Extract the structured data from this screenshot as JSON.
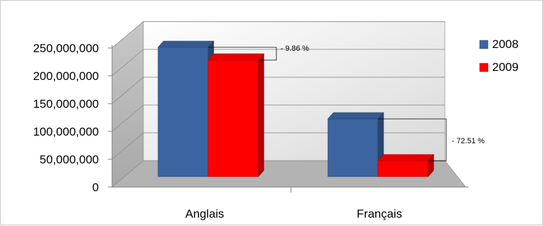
{
  "chart_data": {
    "type": "bar",
    "categories": [
      "Anglais",
      "Français"
    ],
    "series": [
      {
        "name": "2008",
        "values": [
          224000000,
          100000000
        ],
        "color": "#3b64a0"
      },
      {
        "name": "2009",
        "values": [
          202000000,
          27500000
        ],
        "color": "#ff0000"
      }
    ],
    "y_ticks": [
      "0",
      "50,000,000",
      "100,000,000",
      "150,000,000",
      "200,000,000",
      "250,000,000"
    ],
    "ylim": [
      0,
      250000000
    ],
    "annotations": [
      "- 9.86 %",
      "- 72.51 %"
    ],
    "legend_position": "right",
    "grid": true,
    "style": "3d-clustered-column"
  }
}
